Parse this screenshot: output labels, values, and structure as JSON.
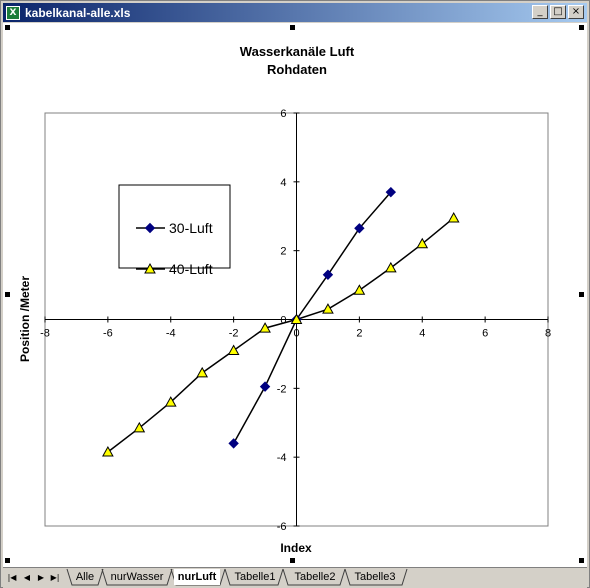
{
  "window": {
    "title": "kabelkanal-alle.xls",
    "icon": "excel-icon",
    "buttons": {
      "minimize": "_",
      "maximize": "□",
      "close": "×"
    }
  },
  "sheet_tabs": [
    "Alle",
    "nurWasser",
    "nurLuft",
    "Tabelle1",
    "Tabelle2",
    "Tabelle3"
  ],
  "active_tab": "nurLuft",
  "tab_nav_icons": [
    "first-sheet-icon",
    "prev-sheet-icon",
    "next-sheet-icon",
    "last-sheet-icon"
  ],
  "chart_data": {
    "type": "scatter",
    "title": "Wasserkanäle Luft",
    "subtitle": "Rohdaten",
    "xlabel": "Index",
    "ylabel": "Position /Meter",
    "xlim": [
      -8,
      8
    ],
    "ylim": [
      -6,
      6
    ],
    "xticks": [
      -8,
      -6,
      -4,
      -2,
      0,
      2,
      4,
      6,
      8
    ],
    "yticks": [
      -6,
      -4,
      -2,
      0,
      2,
      4,
      6
    ],
    "grid": false,
    "legend_position": "upper-left",
    "series": [
      {
        "name": "30-Luft",
        "marker": "diamond",
        "color": "#000080",
        "points": [
          [
            -2,
            -3.6
          ],
          [
            -1,
            -1.95
          ],
          [
            0,
            0
          ],
          [
            1,
            1.3
          ],
          [
            2,
            2.65
          ],
          [
            3,
            3.7
          ]
        ]
      },
      {
        "name": "40-Luft",
        "marker": "triangle",
        "color": "#ffff00",
        "points": [
          [
            -6,
            -3.85
          ],
          [
            -5,
            -3.15
          ],
          [
            -4,
            -2.4
          ],
          [
            -3,
            -1.55
          ],
          [
            -2,
            -0.9
          ],
          [
            -1,
            -0.25
          ],
          [
            0,
            0
          ],
          [
            1,
            0.3
          ],
          [
            2,
            0.85
          ],
          [
            3,
            1.5
          ],
          [
            4,
            2.2
          ],
          [
            5,
            2.95
          ]
        ]
      }
    ]
  }
}
